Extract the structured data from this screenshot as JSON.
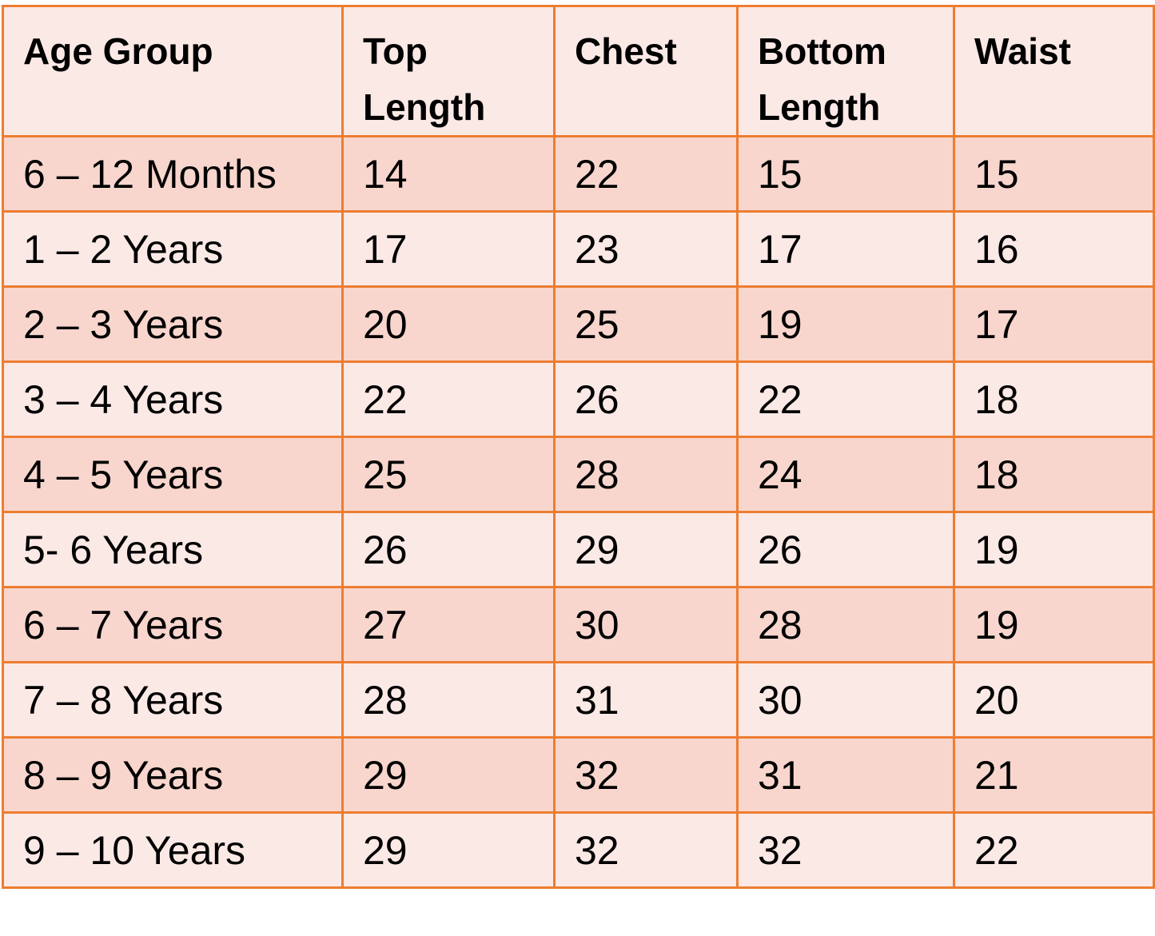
{
  "table": {
    "header": [
      "Age Group",
      "Top Length",
      "Chest",
      "Bottom Length",
      "Waist"
    ],
    "rows": [
      [
        "6 – 12 Months",
        "14",
        "22",
        "15",
        "15"
      ],
      [
        "1 – 2 Years",
        "17",
        "23",
        "17",
        "16"
      ],
      [
        "2 – 3 Years",
        "20",
        "25",
        "19",
        "17"
      ],
      [
        "3 – 4 Years",
        "22",
        "26",
        "22",
        "18"
      ],
      [
        "4 – 5 Years",
        "25",
        "28",
        "24",
        "18"
      ],
      [
        "5- 6 Years",
        "26",
        "29",
        "26",
        "19"
      ],
      [
        "6 – 7 Years",
        "27",
        "30",
        "28",
        "19"
      ],
      [
        "7 – 8 Years",
        "28",
        "31",
        "30",
        "20"
      ],
      [
        "8 – 9 Years",
        "29",
        "32",
        "31",
        "21"
      ],
      [
        "9 – 10 Years",
        "29",
        "32",
        "32",
        "22"
      ]
    ]
  }
}
